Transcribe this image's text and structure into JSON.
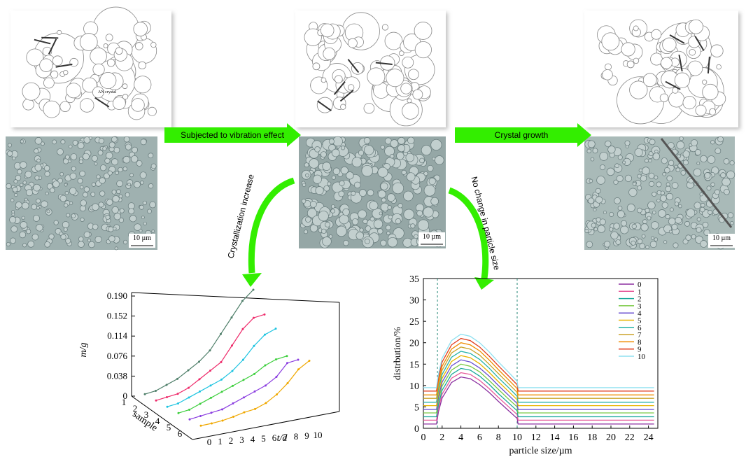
{
  "labels": {
    "arrow_vibration": "Subjected to vibration effect",
    "arrow_growth": "Crystal growth",
    "arrow_crystallization": "Crystallization increase",
    "arrow_size": "No change in particle size",
    "an_crystal": "AN crystal",
    "scale_bars": [
      "10 µm",
      "10 µm",
      "10 µm"
    ]
  },
  "chart_data": [
    {
      "type": "line3d",
      "ylabel": "m/g",
      "xlabel": "t/d",
      "zlabel": "sample",
      "x": [
        0,
        1,
        2,
        3,
        4,
        5,
        6,
        7,
        8,
        9,
        10
      ],
      "xlim": [
        0,
        10
      ],
      "xticks": [
        0,
        1,
        2,
        3,
        4,
        5,
        6,
        7,
        8,
        9,
        10
      ],
      "ylim": [
        0,
        0.19
      ],
      "yticks": [
        0,
        0.038,
        0.076,
        0.114,
        0.152,
        {
          "value": 0.19,
          "label": "0.190"
        }
      ],
      "zticks": [
        1,
        2,
        3,
        4,
        5,
        6
      ],
      "series": [
        {
          "color": "#4f7f6a",
          "values": [
            0.005,
            0.01,
            0.02,
            0.03,
            0.045,
            0.06,
            0.08,
            0.11,
            0.14,
            0.17,
            0.19
          ]
        },
        {
          "color": "#ee2a6a",
          "values": [
            0.005,
            0.01,
            0.015,
            0.025,
            0.04,
            0.055,
            0.07,
            0.1,
            0.13,
            0.15,
            0.155
          ]
        },
        {
          "color": "#1bc3e0",
          "values": [
            0.005,
            0.01,
            0.02,
            0.03,
            0.04,
            0.05,
            0.065,
            0.085,
            0.11,
            0.13,
            0.14
          ]
        },
        {
          "color": "#3ccf3c",
          "values": [
            0.005,
            0.01,
            0.02,
            0.03,
            0.04,
            0.05,
            0.06,
            0.07,
            0.085,
            0.095,
            0.1
          ]
        },
        {
          "color": "#8a3ce0",
          "values": [
            0.005,
            0.01,
            0.015,
            0.02,
            0.03,
            0.04,
            0.05,
            0.06,
            0.075,
            0.1,
            0.105
          ]
        },
        {
          "color": "#f0a800",
          "values": [
            0.005,
            0.008,
            0.012,
            0.018,
            0.025,
            0.03,
            0.04,
            0.055,
            0.075,
            0.1,
            0.115
          ]
        }
      ]
    },
    {
      "type": "line",
      "xlabel": "particle size/µm",
      "ylabel": "distrbution/%",
      "x": [
        0,
        1.4,
        1.6,
        2,
        3,
        4,
        5,
        6,
        7,
        8,
        9,
        10,
        10.1,
        24.6
      ],
      "xlim": [
        0,
        25
      ],
      "xticks": [
        0,
        2,
        4,
        6,
        8,
        10,
        12,
        14,
        16,
        18,
        20,
        22,
        24
      ],
      "ylim": [
        0,
        35
      ],
      "yticks": [
        0,
        5,
        10,
        15,
        20,
        25,
        30,
        35
      ],
      "vlines": [
        1.5,
        10
      ],
      "legend": "top-right",
      "series": [
        {
          "name": "0",
          "color": "#8b2fa0",
          "values": [
            1,
            1,
            3.8,
            7.1,
            10.7,
            12,
            11.6,
            10.2,
            8.4,
            6.3,
            4.3,
            2.3,
            1,
            1
          ]
        },
        {
          "name": "1",
          "color": "#e75a9a",
          "values": [
            1.9,
            1.9,
            4.7,
            8.0,
            11.7,
            13,
            12.6,
            11.2,
            9.3,
            7.2,
            5.2,
            3.2,
            1.9,
            1.9
          ]
        },
        {
          "name": "2",
          "color": "#1aa89a",
          "values": [
            2.7,
            2.7,
            5.5,
            8.9,
            12.6,
            14,
            13.6,
            12.2,
            10.3,
            8.1,
            6.1,
            4.1,
            2.7,
            2.7
          ]
        },
        {
          "name": "3",
          "color": "#7ac943",
          "values": [
            3.6,
            3.6,
            6.5,
            9.9,
            13.6,
            15,
            14.5,
            13.2,
            11.2,
            9.1,
            7.0,
            5.0,
            3.6,
            3.6
          ]
        },
        {
          "name": "4",
          "color": "#6a4fd0",
          "values": [
            4.4,
            4.4,
            7.3,
            10.8,
            14.6,
            16,
            15.5,
            14.1,
            12.2,
            10.0,
            7.9,
            5.8,
            4.4,
            4.4
          ]
        },
        {
          "name": "5",
          "color": "#e8b400",
          "values": [
            5.3,
            5.3,
            8.2,
            11.7,
            15.6,
            17,
            16.5,
            15.1,
            13.1,
            10.9,
            8.8,
            6.7,
            5.3,
            5.3
          ]
        },
        {
          "name": "6",
          "color": "#27b3a8",
          "values": [
            6.1,
            6.1,
            9.1,
            12.6,
            16.6,
            18,
            17.5,
            16.1,
            14.1,
            11.8,
            9.7,
            7.5,
            6.1,
            6.1
          ]
        },
        {
          "name": "7",
          "color": "#c9a227",
          "values": [
            7,
            7,
            10,
            13.6,
            17.6,
            19,
            18.5,
            17.1,
            15.0,
            12.8,
            10.6,
            8.4,
            7,
            7
          ]
        },
        {
          "name": "8",
          "color": "#f08c00",
          "values": [
            7.8,
            7.8,
            10.9,
            14.5,
            18.5,
            20,
            19.5,
            18.1,
            16.0,
            13.7,
            11.5,
            9.3,
            7.8,
            7.8
          ]
        },
        {
          "name": "9",
          "color": "#e03c1e",
          "values": [
            8.7,
            8.7,
            11.8,
            15.5,
            19.5,
            21,
            20.5,
            19.0,
            16.9,
            14.6,
            12.4,
            10.2,
            8.7,
            8.7
          ]
        },
        {
          "name": "10",
          "color": "#8fe0f0",
          "values": [
            9.5,
            9.5,
            12.6,
            16.4,
            20.5,
            22,
            21.5,
            20.0,
            17.9,
            15.5,
            13.3,
            11.0,
            9.5,
            9.5
          ]
        }
      ]
    }
  ]
}
